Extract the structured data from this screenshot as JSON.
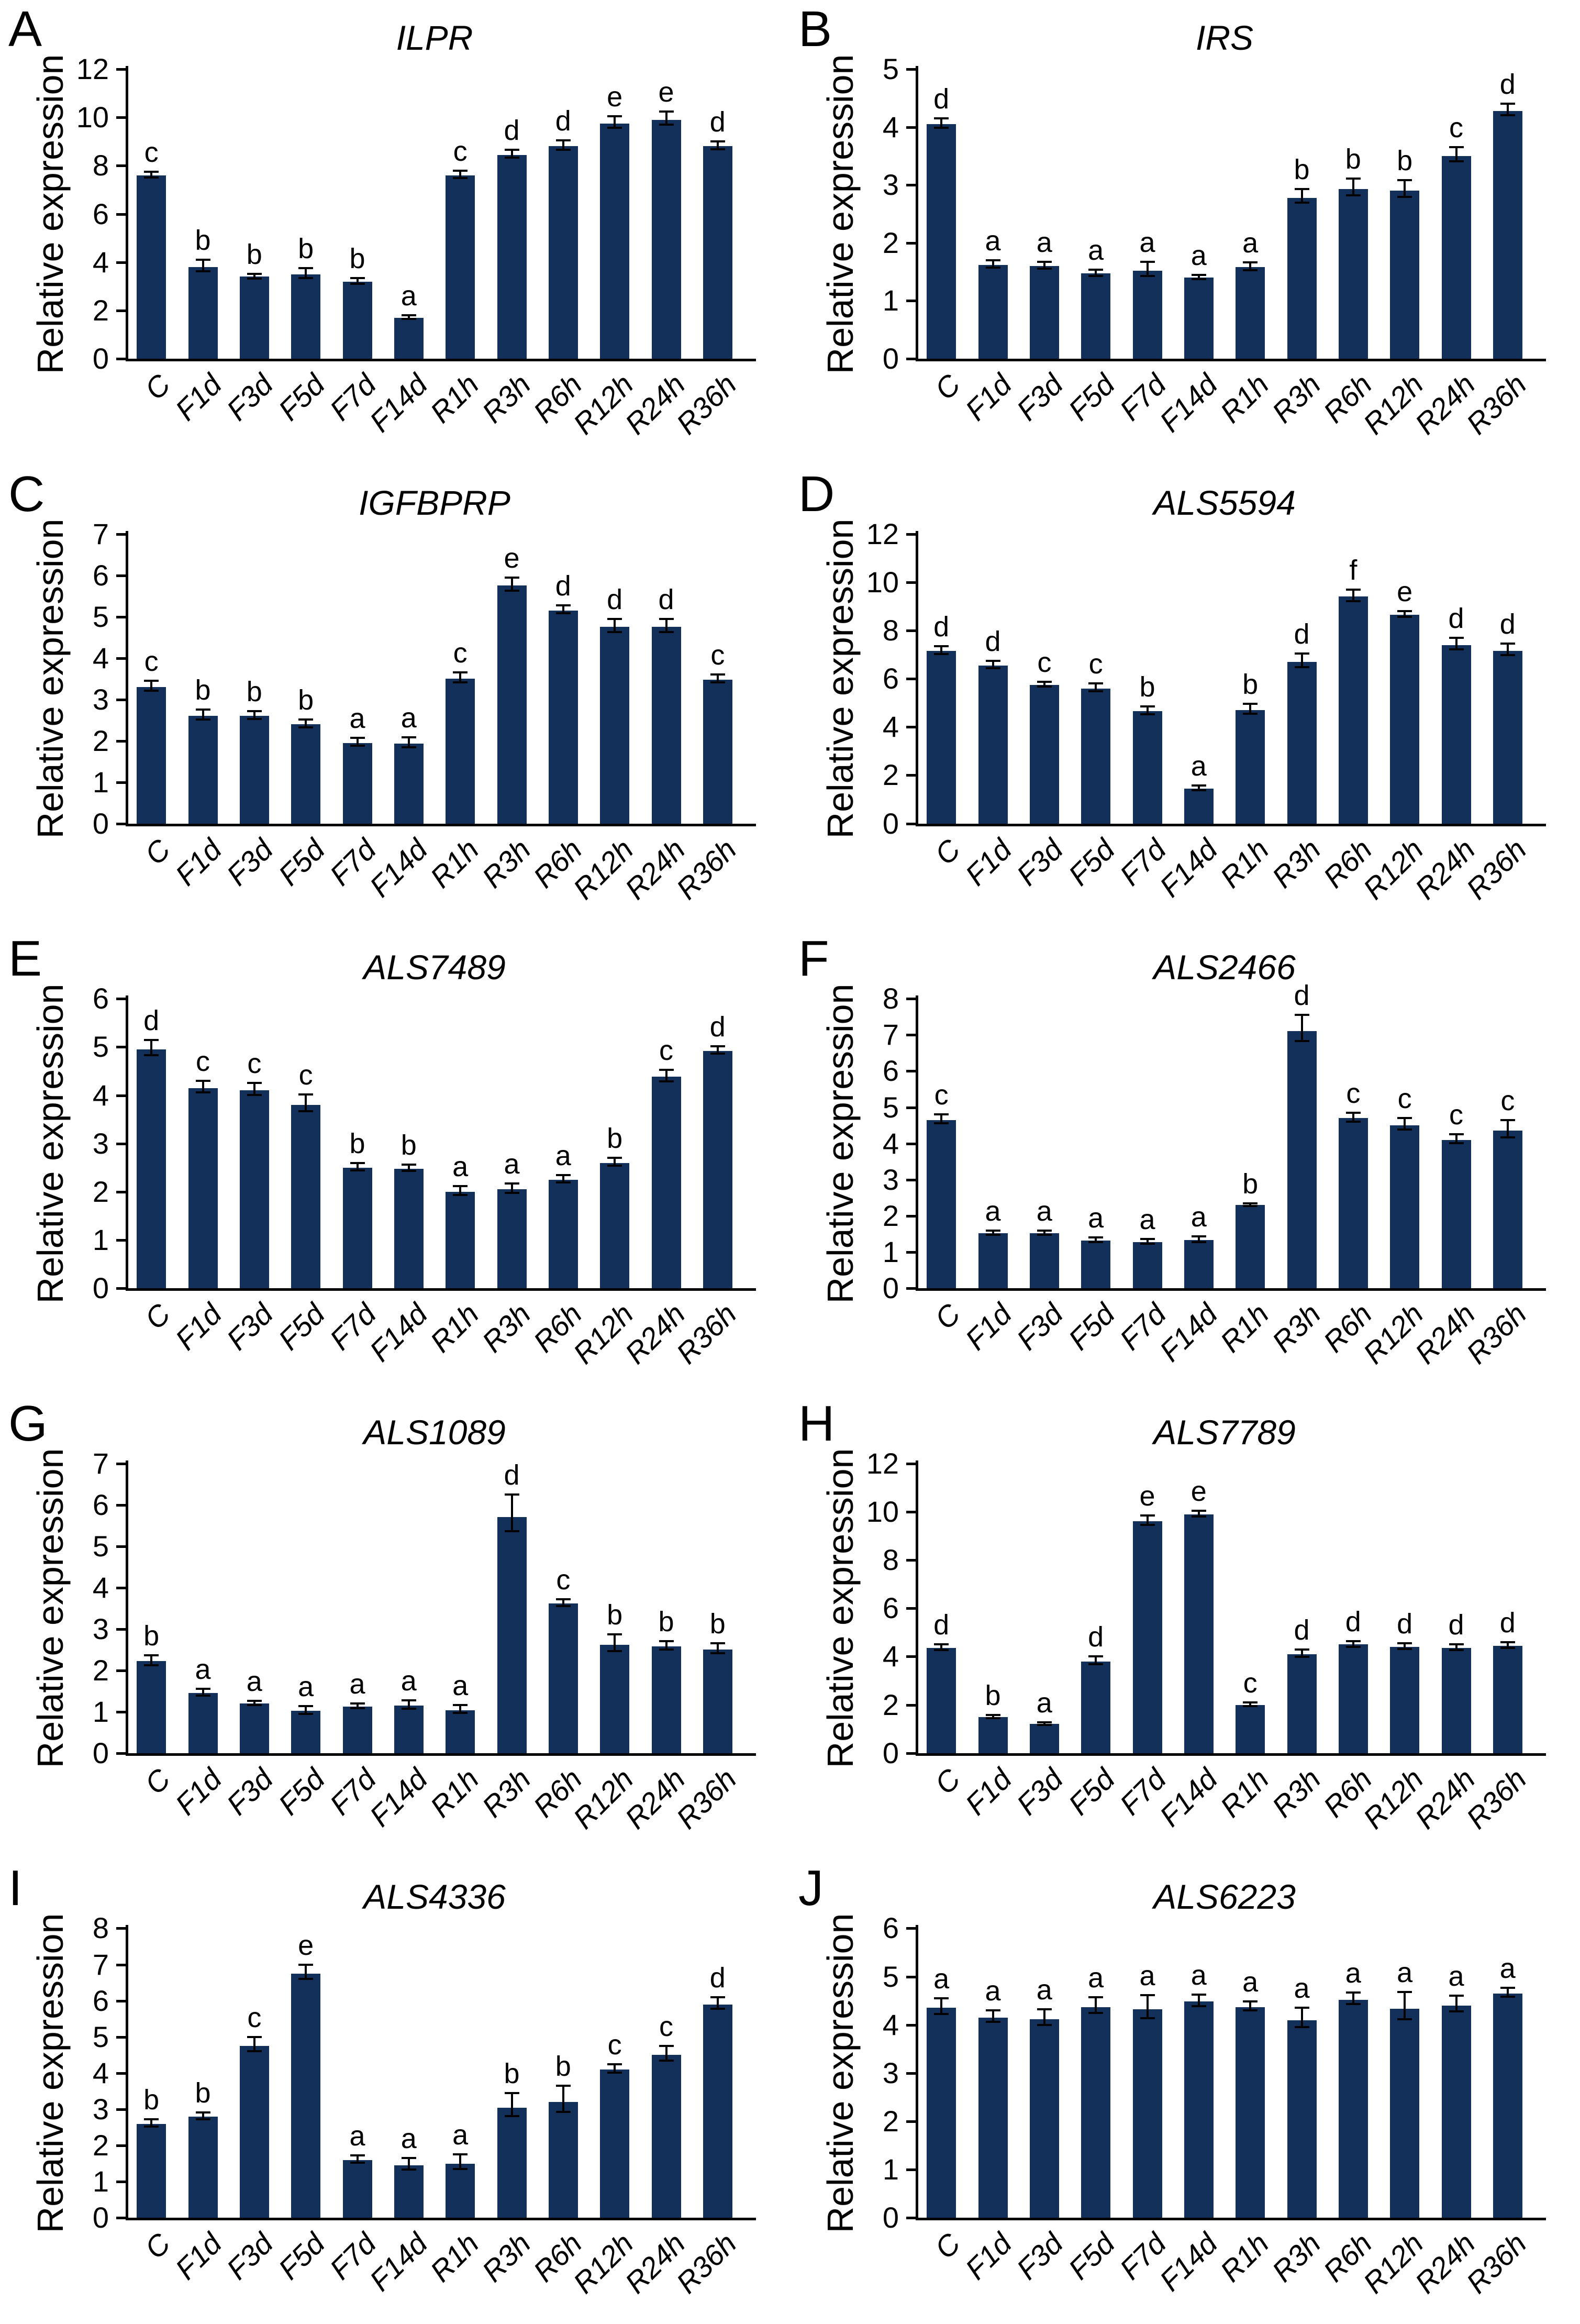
{
  "figure": {
    "background": "#ffffff",
    "bar_color": "#12305a",
    "axis_color": "#000000",
    "y_axis_label": "Relative expression",
    "panel_letters": [
      "A",
      "B",
      "C",
      "D",
      "E",
      "F",
      "G",
      "H",
      "I",
      "J"
    ],
    "layout": "2 columns x 5 rows, grid off, no legend"
  },
  "chart_data": [
    {
      "type": "bar",
      "panel": "A",
      "title": "ILPR",
      "ylabel": "Relative expression",
      "categories": [
        "C",
        "F1d",
        "F3d",
        "F5d",
        "F7d",
        "F14d",
        "R1h",
        "R3h",
        "R6h",
        "R12h",
        "R24h",
        "R36h"
      ],
      "values": [
        7.6,
        3.8,
        3.4,
        3.5,
        3.2,
        1.7,
        7.6,
        8.45,
        8.8,
        9.75,
        9.9,
        8.8
      ],
      "errors": [
        0.15,
        0.3,
        0.12,
        0.25,
        0.15,
        0.1,
        0.2,
        0.2,
        0.25,
        0.3,
        0.35,
        0.2
      ],
      "sig_letters": [
        "c",
        "b",
        "b",
        "b",
        "b",
        "a",
        "c",
        "d",
        "d",
        "e",
        "e",
        "d"
      ],
      "ylim": [
        0,
        12
      ],
      "ytick_step": 2,
      "grid": false,
      "legend": null
    },
    {
      "type": "bar",
      "panel": "B",
      "title": "IRS",
      "ylabel": "Relative expression",
      "categories": [
        "C",
        "F1d",
        "F3d",
        "F5d",
        "F7d",
        "F14d",
        "R1h",
        "R3h",
        "R6h",
        "R12h",
        "R24h",
        "R36h"
      ],
      "values": [
        4.05,
        1.62,
        1.6,
        1.47,
        1.52,
        1.4,
        1.58,
        2.78,
        2.93,
        2.9,
        3.5,
        4.28
      ],
      "errors": [
        0.1,
        0.08,
        0.07,
        0.07,
        0.15,
        0.05,
        0.08,
        0.15,
        0.18,
        0.18,
        0.15,
        0.12
      ],
      "sig_letters": [
        "d",
        "a",
        "a",
        "a",
        "a",
        "a",
        "a",
        "b",
        "b",
        "b",
        "c",
        "d"
      ],
      "ylim": [
        0,
        5
      ],
      "ytick_step": 1,
      "grid": false,
      "legend": null
    },
    {
      "type": "bar",
      "panel": "C",
      "title": "IGFBPRP",
      "ylabel": "Relative expression",
      "categories": [
        "C",
        "F1d",
        "F3d",
        "F5d",
        "F7d",
        "F14d",
        "R1h",
        "R3h",
        "R6h",
        "R12h",
        "R24h",
        "R36h"
      ],
      "values": [
        3.3,
        2.6,
        2.6,
        2.4,
        1.95,
        1.93,
        3.5,
        5.75,
        5.15,
        4.75,
        4.75,
        3.48
      ],
      "errors": [
        0.15,
        0.15,
        0.12,
        0.12,
        0.12,
        0.15,
        0.15,
        0.2,
        0.12,
        0.2,
        0.2,
        0.12
      ],
      "sig_letters": [
        "c",
        "b",
        "b",
        "b",
        "a",
        "a",
        "c",
        "e",
        "d",
        "d",
        "d",
        "c"
      ],
      "ylim": [
        0,
        7
      ],
      "ytick_step": 1,
      "grid": false,
      "legend": null
    },
    {
      "type": "bar",
      "panel": "D",
      "title": "ALS5594",
      "ylabel": "Relative expression",
      "categories": [
        "C",
        "F1d",
        "F3d",
        "F5d",
        "F7d",
        "F14d",
        "R1h",
        "R3h",
        "R6h",
        "R12h",
        "R24h",
        "R36h"
      ],
      "values": [
        7.15,
        6.55,
        5.75,
        5.6,
        4.65,
        1.45,
        4.7,
        6.7,
        9.4,
        8.65,
        7.4,
        7.15
      ],
      "errors": [
        0.2,
        0.2,
        0.12,
        0.2,
        0.2,
        0.12,
        0.25,
        0.35,
        0.3,
        0.15,
        0.3,
        0.3
      ],
      "sig_letters": [
        "d",
        "d",
        "c",
        "c",
        "b",
        "a",
        "b",
        "d",
        "f",
        "e",
        "d",
        "d"
      ],
      "ylim": [
        0,
        12
      ],
      "ytick_step": 2,
      "grid": false,
      "legend": null
    },
    {
      "type": "bar",
      "panel": "E",
      "title": "ALS7489",
      "ylabel": "Relative expression",
      "categories": [
        "C",
        "F1d",
        "F3d",
        "F5d",
        "F7d",
        "F14d",
        "R1h",
        "R3h",
        "R6h",
        "R12h",
        "R24h",
        "R36h"
      ],
      "values": [
        4.95,
        4.15,
        4.1,
        3.8,
        2.5,
        2.48,
        2.0,
        2.05,
        2.25,
        2.6,
        4.38,
        4.92
      ],
      "errors": [
        0.2,
        0.15,
        0.15,
        0.22,
        0.1,
        0.08,
        0.12,
        0.12,
        0.1,
        0.1,
        0.15,
        0.1
      ],
      "sig_letters": [
        "d",
        "c",
        "c",
        "c",
        "b",
        "b",
        "a",
        "a",
        "a",
        "b",
        "c",
        "d"
      ],
      "ylim": [
        0,
        6
      ],
      "ytick_step": 1,
      "grid": false,
      "legend": null
    },
    {
      "type": "bar",
      "panel": "F",
      "title": "ALS2466",
      "ylabel": "Relative expression",
      "categories": [
        "C",
        "F1d",
        "F3d",
        "F5d",
        "F7d",
        "F14d",
        "R1h",
        "R3h",
        "R6h",
        "R12h",
        "R24h",
        "R36h"
      ],
      "values": [
        4.65,
        1.52,
        1.52,
        1.32,
        1.28,
        1.33,
        2.3,
        7.1,
        4.7,
        4.5,
        4.1,
        4.35
      ],
      "errors": [
        0.15,
        0.07,
        0.07,
        0.08,
        0.08,
        0.1,
        0.05,
        0.45,
        0.15,
        0.2,
        0.15,
        0.3
      ],
      "sig_letters": [
        "c",
        "a",
        "a",
        "a",
        "a",
        "a",
        "b",
        "d",
        "c",
        "c",
        "c",
        "c"
      ],
      "ylim": [
        0,
        8
      ],
      "ytick_step": 1,
      "grid": false,
      "legend": null
    },
    {
      "type": "bar",
      "panel": "G",
      "title": "ALS1089",
      "ylabel": "Relative expression",
      "categories": [
        "C",
        "F1d",
        "F3d",
        "F5d",
        "F7d",
        "F14d",
        "R1h",
        "R3h",
        "R6h",
        "R12h",
        "R24h",
        "R36h"
      ],
      "values": [
        2.22,
        1.45,
        1.2,
        1.02,
        1.13,
        1.15,
        1.04,
        5.7,
        3.62,
        2.62,
        2.58,
        2.5
      ],
      "errors": [
        0.15,
        0.1,
        0.06,
        0.12,
        0.07,
        0.12,
        0.12,
        0.55,
        0.1,
        0.25,
        0.12,
        0.15
      ],
      "sig_letters": [
        "b",
        "a",
        "a",
        "a",
        "a",
        "a",
        "a",
        "d",
        "c",
        "b",
        "b",
        "b"
      ],
      "ylim": [
        0,
        7
      ],
      "ytick_step": 1,
      "grid": false,
      "legend": null
    },
    {
      "type": "bar",
      "panel": "H",
      "title": "ALS7789",
      "ylabel": "Relative expression",
      "categories": [
        "C",
        "F1d",
        "F3d",
        "F5d",
        "F7d",
        "F14d",
        "R1h",
        "R3h",
        "R6h",
        "R12h",
        "R24h",
        "R36h"
      ],
      "values": [
        4.35,
        1.5,
        1.2,
        3.8,
        9.6,
        9.9,
        2.0,
        4.1,
        4.5,
        4.4,
        4.35,
        4.45
      ],
      "errors": [
        0.15,
        0.08,
        0.07,
        0.2,
        0.25,
        0.15,
        0.1,
        0.2,
        0.15,
        0.15,
        0.15,
        0.15
      ],
      "sig_letters": [
        "d",
        "b",
        "a",
        "d",
        "e",
        "e",
        "c",
        "d",
        "d",
        "d",
        "d",
        "d"
      ],
      "ylim": [
        0,
        12
      ],
      "ytick_step": 2,
      "grid": false,
      "legend": null
    },
    {
      "type": "bar",
      "panel": "I",
      "title": "ALS4336",
      "ylabel": "Relative expression",
      "categories": [
        "C",
        "F1d",
        "F3d",
        "F5d",
        "F7d",
        "F14d",
        "R1h",
        "R3h",
        "R6h",
        "R12h",
        "R24h",
        "R36h"
      ],
      "values": [
        2.6,
        2.8,
        4.75,
        6.75,
        1.6,
        1.45,
        1.5,
        3.05,
        3.2,
        4.1,
        4.5,
        5.9
      ],
      "errors": [
        0.12,
        0.12,
        0.25,
        0.25,
        0.12,
        0.2,
        0.25,
        0.4,
        0.45,
        0.15,
        0.25,
        0.2
      ],
      "sig_letters": [
        "b",
        "b",
        "c",
        "e",
        "a",
        "a",
        "a",
        "b",
        "b",
        "c",
        "c",
        "d"
      ],
      "ylim": [
        0,
        8
      ],
      "ytick_step": 1,
      "grid": false,
      "legend": null
    },
    {
      "type": "bar",
      "panel": "J",
      "title": "ALS6223",
      "ylabel": "Relative expression",
      "categories": [
        "C",
        "F1d",
        "F3d",
        "F5d",
        "F7d",
        "F14d",
        "R1h",
        "R3h",
        "R6h",
        "R12h",
        "R24h",
        "R36h"
      ],
      "values": [
        4.35,
        4.15,
        4.12,
        4.37,
        4.32,
        4.48,
        4.37,
        4.1,
        4.52,
        4.33,
        4.4,
        4.65
      ],
      "errors": [
        0.2,
        0.15,
        0.2,
        0.2,
        0.3,
        0.15,
        0.12,
        0.25,
        0.15,
        0.35,
        0.2,
        0.12
      ],
      "sig_letters": [
        "a",
        "a",
        "a",
        "a",
        "a",
        "a",
        "a",
        "a",
        "a",
        "a",
        "a",
        "a"
      ],
      "ylim": [
        0,
        6
      ],
      "ytick_step": 1,
      "grid": false,
      "legend": null
    }
  ]
}
